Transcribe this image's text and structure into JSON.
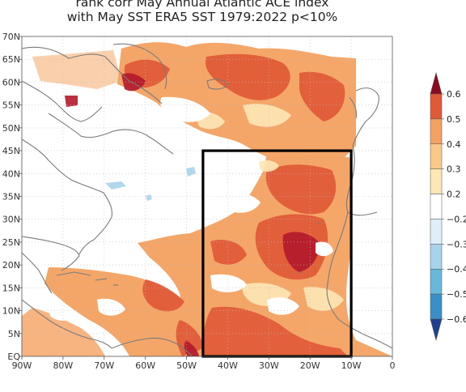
{
  "title": {
    "line1": "rank corr May Annual Atlantic ACE index",
    "line2": "with May SST ERA5 SST 1979:2022 p<10%"
  },
  "map": {
    "lon_range": [
      -90,
      0
    ],
    "lat_range": [
      0,
      70
    ],
    "lon_ticks": [
      "90W",
      "80W",
      "70W",
      "60W",
      "50W",
      "40W",
      "30W",
      "20W",
      "10W",
      "0"
    ],
    "lat_ticks": [
      "EQ",
      "5N",
      "10N",
      "15N",
      "20N",
      "25N",
      "30N",
      "35N",
      "40N",
      "45N",
      "50N",
      "55N",
      "60N",
      "65N",
      "70N"
    ],
    "grid": "dotted",
    "highlight_box": {
      "lon": [
        -46,
        -10
      ],
      "lat": [
        0,
        45
      ]
    }
  },
  "colorbar": {
    "labels": [
      "0.6",
      "0.5",
      "0.4",
      "0.3",
      "0.2",
      "−0.2",
      "−0.3",
      "−0.4",
      "−0.5",
      "−0.6"
    ],
    "colors": [
      "#b2182b",
      "#e05a37",
      "#f4a261",
      "#f9c98a",
      "#fde7b5",
      "#ffffff",
      "#deeff9",
      "#a9d3ea",
      "#67b9dc",
      "#3a8fc9",
      "#2166ac"
    ],
    "extend": "both"
  }
}
